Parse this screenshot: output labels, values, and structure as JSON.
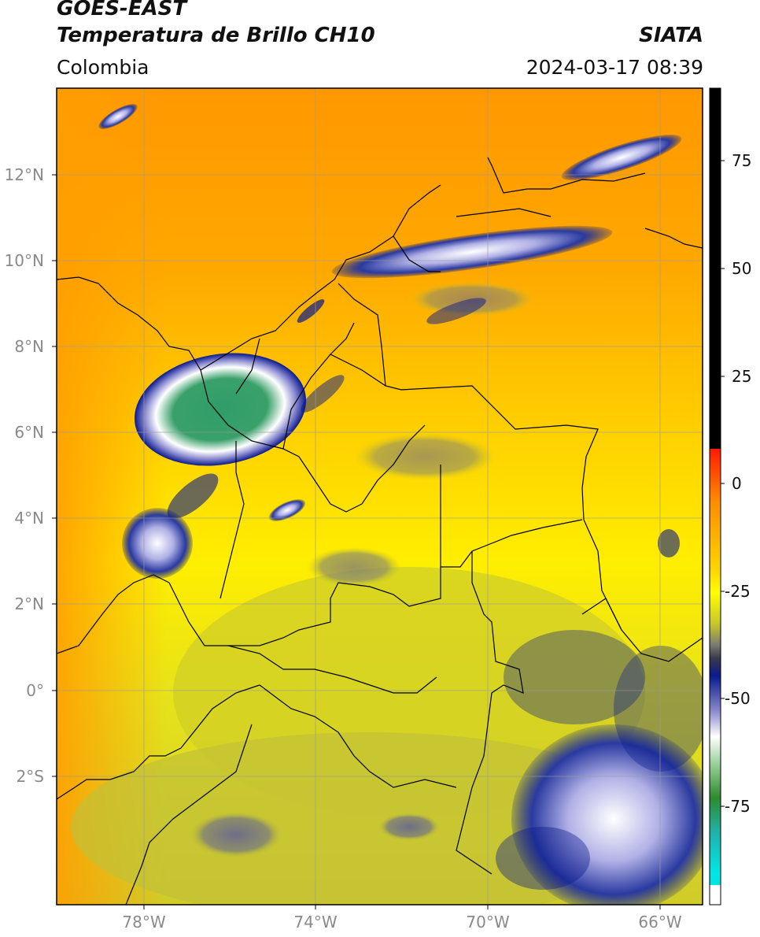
{
  "header": {
    "satellite": "GOES-EAST",
    "product": "Temperatura de Brillo CH10",
    "region": "Colombia",
    "agency": "SIATA",
    "timestamp": "2024-03-17 08:39"
  },
  "map": {
    "lat_labels": [
      "12°N",
      "10°N",
      "8°N",
      "6°N",
      "4°N",
      "2°N",
      "0°",
      "2°S"
    ],
    "lon_labels": [
      "78°W",
      "74°W",
      "70°W",
      "66°W"
    ]
  },
  "colorbar": {
    "labels": [
      "75",
      "50",
      "25",
      "0",
      "-25",
      "-50",
      "-75"
    ],
    "colors": {
      "black": "#000000",
      "red": "#ff1a00",
      "orange": "#ff8c00",
      "yellow": "#ffff00",
      "olive": "#c8c82a",
      "gray": "#7a7a70",
      "navy": "#0a1a8c",
      "white": "#ffffff",
      "green": "#2e8b2e",
      "teal": "#20b2aa",
      "cyan": "#00e5e5"
    }
  }
}
